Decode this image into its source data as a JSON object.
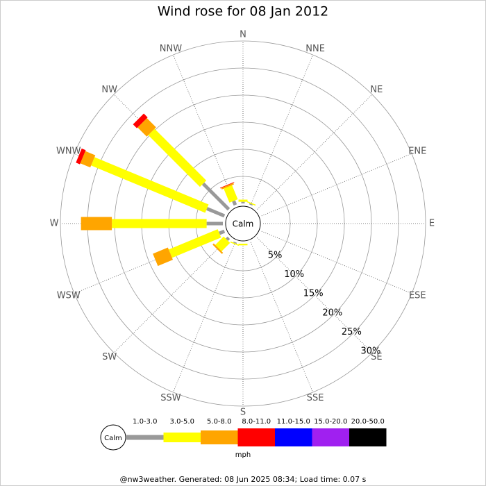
{
  "chart_data": {
    "type": "windrose",
    "title": "Wind rose for 08 Jan 2012",
    "categories": [
      "N",
      "NNE",
      "NE",
      "ENE",
      "E",
      "ESE",
      "SE",
      "SSE",
      "S",
      "SSW",
      "SW",
      "WSW",
      "W",
      "WNW",
      "NW",
      "NNW"
    ],
    "calm_label": "Calm",
    "unit": "mph",
    "footer": "@nw3weather. Generated: 08 Jun 2025 08:34; Load time: 0.07 s",
    "rlim": [
      0,
      30
    ],
    "rticks": [
      {
        "value": 5,
        "label": "5%"
      },
      {
        "value": 10,
        "label": "10%"
      },
      {
        "value": 15,
        "label": "15%"
      },
      {
        "value": 20,
        "label": "20%"
      },
      {
        "value": 25,
        "label": "25%"
      },
      {
        "value": 30,
        "label": "30%"
      }
    ],
    "series": [
      {
        "name": "1.0-3.0",
        "color": "#999999",
        "values": [
          0.3,
          0.2,
          0,
          0,
          0,
          0,
          0,
          0,
          0,
          0.2,
          0.5,
          1,
          3,
          3.5,
          6.7,
          0.8
        ]
      },
      {
        "name": "3.0-5.0",
        "color": "#ffff00",
        "values": [
          0.4,
          0.2,
          0,
          0,
          0,
          0,
          0,
          0,
          0.3,
          0.2,
          2.2,
          9.8,
          17.5,
          22.8,
          13.5,
          2.8
        ]
      },
      {
        "name": "5.0-8.0",
        "color": "#ffa500",
        "values": [
          0,
          0,
          0,
          0,
          0,
          0,
          0,
          0,
          0,
          0,
          0.3,
          3,
          5.7,
          2,
          2.4,
          0.3
        ]
      },
      {
        "name": "8.0-11.0",
        "color": "#ff0000",
        "values": [
          0,
          0,
          0,
          0,
          0,
          0,
          0,
          0,
          0,
          0,
          0,
          0,
          0,
          0.8,
          1,
          0.1
        ]
      },
      {
        "name": "11.0-15.0",
        "color": "#0000ff",
        "values": [
          0,
          0,
          0,
          0,
          0,
          0,
          0,
          0,
          0,
          0,
          0,
          0,
          0,
          0,
          0,
          0
        ]
      },
      {
        "name": "15.0-20.0",
        "color": "#a020f0",
        "values": [
          0,
          0,
          0,
          0,
          0,
          0,
          0,
          0,
          0,
          0,
          0,
          0,
          0,
          0,
          0,
          0
        ]
      },
      {
        "name": "20.0-50.0",
        "color": "#000000",
        "values": [
          0,
          0,
          0,
          0,
          0,
          0,
          0,
          0,
          0,
          0,
          0,
          0,
          0,
          0,
          0,
          0
        ]
      }
    ]
  }
}
